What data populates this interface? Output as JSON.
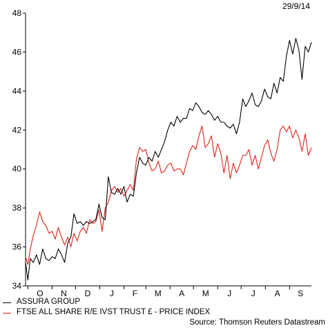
{
  "chart_data": {
    "type": "line",
    "date_label": "29/9/14",
    "source": "Source: Thomson Reuters Datastream",
    "x_ticks": [
      "O",
      "N",
      "D",
      "J",
      "F",
      "M",
      "A",
      "M",
      "J",
      "J",
      "A",
      "S"
    ],
    "x_tick_dates": [
      "2013-10-01",
      "2013-11-01",
      "2013-12-01",
      "2014-01-01",
      "2014-02-01",
      "2014-03-01",
      "2014-04-01",
      "2014-05-01",
      "2014-06-01",
      "2014-07-01",
      "2014-08-01",
      "2014-09-01"
    ],
    "x_range": [
      "2013-09-28",
      "2014-09-29"
    ],
    "ylim": [
      34,
      48
    ],
    "y_ticks": [
      34,
      36,
      38,
      40,
      42,
      44,
      46,
      48
    ],
    "grid": false,
    "legend_position": "bottom-left",
    "series": [
      {
        "name": "ASSURA GROUP",
        "color": "#000000",
        "points": [
          [
            "2013-09-28",
            35.2
          ],
          [
            "2013-10-01",
            34.3
          ],
          [
            "2013-10-04",
            35.4
          ],
          [
            "2013-10-08",
            35.2
          ],
          [
            "2013-10-12",
            35.6
          ],
          [
            "2013-10-16",
            35.1
          ],
          [
            "2013-10-20",
            35.9
          ],
          [
            "2013-10-24",
            35.4
          ],
          [
            "2013-10-28",
            35.3
          ],
          [
            "2013-11-01",
            35.5
          ],
          [
            "2013-11-05",
            35.4
          ],
          [
            "2013-11-09",
            35.9
          ],
          [
            "2013-11-13",
            35.6
          ],
          [
            "2013-11-17",
            35.2
          ],
          [
            "2013-11-21",
            36.2
          ],
          [
            "2013-11-25",
            36.5
          ],
          [
            "2013-11-29",
            37.7
          ],
          [
            "2013-12-03",
            37.2
          ],
          [
            "2013-12-07",
            37.3
          ],
          [
            "2013-12-11",
            37.1
          ],
          [
            "2013-12-15",
            37.3
          ],
          [
            "2013-12-19",
            37.2
          ],
          [
            "2013-12-23",
            37.3
          ],
          [
            "2013-12-27",
            37.4
          ],
          [
            "2013-12-31",
            38.2
          ],
          [
            "2014-01-04",
            37.5
          ],
          [
            "2014-01-08",
            37.4
          ],
          [
            "2014-01-12",
            39.6
          ],
          [
            "2014-01-16",
            38.8
          ],
          [
            "2014-01-20",
            38.7
          ],
          [
            "2014-01-24",
            39.0
          ],
          [
            "2014-01-28",
            38.7
          ],
          [
            "2014-02-01",
            39.1
          ],
          [
            "2014-02-05",
            38.3
          ],
          [
            "2014-02-09",
            38.7
          ],
          [
            "2014-02-13",
            38.6
          ],
          [
            "2014-02-17",
            39.8
          ],
          [
            "2014-02-21",
            40.6
          ],
          [
            "2014-02-25",
            40.3
          ],
          [
            "2014-03-01",
            40.2
          ],
          [
            "2014-03-05",
            40.6
          ],
          [
            "2014-03-09",
            40.4
          ],
          [
            "2014-03-13",
            40.9
          ],
          [
            "2014-03-17",
            40.6
          ],
          [
            "2014-03-21",
            41.0
          ],
          [
            "2014-03-25",
            41.4
          ],
          [
            "2014-03-29",
            42.0
          ],
          [
            "2014-04-02",
            42.4
          ],
          [
            "2014-04-06",
            42.2
          ],
          [
            "2014-04-10",
            42.7
          ],
          [
            "2014-04-14",
            42.4
          ],
          [
            "2014-04-18",
            42.6
          ],
          [
            "2014-04-22",
            42.6
          ],
          [
            "2014-04-26",
            43.1
          ],
          [
            "2014-04-30",
            43.0
          ],
          [
            "2014-05-04",
            43.4
          ],
          [
            "2014-05-08",
            43.2
          ],
          [
            "2014-05-12",
            42.9
          ],
          [
            "2014-05-16",
            42.8
          ],
          [
            "2014-05-20",
            43.0
          ],
          [
            "2014-05-24",
            42.8
          ],
          [
            "2014-05-28",
            42.5
          ],
          [
            "2014-06-01",
            42.7
          ],
          [
            "2014-06-05",
            42.4
          ],
          [
            "2014-06-09",
            42.4
          ],
          [
            "2014-06-13",
            42.2
          ],
          [
            "2014-06-17",
            42.1
          ],
          [
            "2014-06-21",
            42.3
          ],
          [
            "2014-06-25",
            41.8
          ],
          [
            "2014-06-29",
            42.4
          ],
          [
            "2014-07-03",
            43.6
          ],
          [
            "2014-07-07",
            43.2
          ],
          [
            "2014-07-11",
            43.5
          ],
          [
            "2014-07-15",
            43.9
          ],
          [
            "2014-07-19",
            43.3
          ],
          [
            "2014-07-23",
            43.2
          ],
          [
            "2014-07-27",
            43.5
          ],
          [
            "2014-07-31",
            44.1
          ],
          [
            "2014-08-04",
            43.7
          ],
          [
            "2014-08-08",
            43.6
          ],
          [
            "2014-08-12",
            44.4
          ],
          [
            "2014-08-16",
            43.9
          ],
          [
            "2014-08-20",
            44.7
          ],
          [
            "2014-08-24",
            44.5
          ],
          [
            "2014-08-28",
            45.8
          ],
          [
            "2014-09-01",
            46.6
          ],
          [
            "2014-09-05",
            45.9
          ],
          [
            "2014-09-09",
            46.7
          ],
          [
            "2014-09-13",
            46.1
          ],
          [
            "2014-09-17",
            44.6
          ],
          [
            "2014-09-21",
            46.3
          ],
          [
            "2014-09-25",
            46.0
          ],
          [
            "2014-09-29",
            46.5
          ]
        ]
      },
      {
        "name": "FTSE ALL SHARE R/E IVST TRUST £ - PRICE INDEX",
        "color": "#e0201a",
        "points": [
          [
            "2013-09-28",
            35.5
          ],
          [
            "2013-10-01",
            35.1
          ],
          [
            "2013-10-04",
            35.9
          ],
          [
            "2013-10-08",
            36.6
          ],
          [
            "2013-10-12",
            37.1
          ],
          [
            "2013-10-16",
            37.8
          ],
          [
            "2013-10-20",
            37.3
          ],
          [
            "2013-10-24",
            37.1
          ],
          [
            "2013-10-28",
            36.7
          ],
          [
            "2013-11-01",
            36.8
          ],
          [
            "2013-11-05",
            36.4
          ],
          [
            "2013-11-09",
            37.0
          ],
          [
            "2013-11-13",
            36.5
          ],
          [
            "2013-11-17",
            36.1
          ],
          [
            "2013-11-21",
            36.5
          ],
          [
            "2013-11-25",
            36.0
          ],
          [
            "2013-11-29",
            36.7
          ],
          [
            "2013-12-03",
            36.3
          ],
          [
            "2013-12-07",
            36.8
          ],
          [
            "2013-12-11",
            37.0
          ],
          [
            "2013-12-15",
            36.7
          ],
          [
            "2013-12-19",
            37.4
          ],
          [
            "2013-12-23",
            37.2
          ],
          [
            "2013-12-27",
            37.3
          ],
          [
            "2013-12-31",
            37.9
          ],
          [
            "2014-01-04",
            36.8
          ],
          [
            "2014-01-08",
            38.0
          ],
          [
            "2014-01-12",
            38.3
          ],
          [
            "2014-01-16",
            38.9
          ],
          [
            "2014-01-20",
            39.1
          ],
          [
            "2014-01-24",
            38.8
          ],
          [
            "2014-01-28",
            39.0
          ],
          [
            "2014-02-01",
            38.6
          ],
          [
            "2014-02-05",
            38.9
          ],
          [
            "2014-02-09",
            39.2
          ],
          [
            "2014-02-13",
            38.9
          ],
          [
            "2014-02-17",
            40.5
          ],
          [
            "2014-02-21",
            41.1
          ],
          [
            "2014-02-25",
            40.9
          ],
          [
            "2014-03-01",
            41.0
          ],
          [
            "2014-03-05",
            40.3
          ],
          [
            "2014-03-09",
            39.9
          ],
          [
            "2014-03-13",
            40.0
          ],
          [
            "2014-03-17",
            40.4
          ],
          [
            "2014-03-21",
            39.8
          ],
          [
            "2014-03-25",
            39.9
          ],
          [
            "2014-03-29",
            40.2
          ],
          [
            "2014-04-02",
            40.3
          ],
          [
            "2014-04-06",
            39.9
          ],
          [
            "2014-04-10",
            40.0
          ],
          [
            "2014-04-14",
            40.0
          ],
          [
            "2014-04-18",
            39.7
          ],
          [
            "2014-04-22",
            40.3
          ],
          [
            "2014-04-26",
            40.9
          ],
          [
            "2014-04-30",
            41.2
          ],
          [
            "2014-05-04",
            41.0
          ],
          [
            "2014-05-08",
            41.7
          ],
          [
            "2014-05-12",
            42.2
          ],
          [
            "2014-05-16",
            41.1
          ],
          [
            "2014-05-20",
            41.3
          ],
          [
            "2014-05-24",
            41.7
          ],
          [
            "2014-05-28",
            40.6
          ],
          [
            "2014-06-01",
            41.3
          ],
          [
            "2014-06-05",
            40.8
          ],
          [
            "2014-06-09",
            39.8
          ],
          [
            "2014-06-13",
            40.7
          ],
          [
            "2014-06-17",
            39.5
          ],
          [
            "2014-06-21",
            40.3
          ],
          [
            "2014-06-25",
            39.8
          ],
          [
            "2014-06-29",
            40.2
          ],
          [
            "2014-07-03",
            40.7
          ],
          [
            "2014-07-07",
            40.7
          ],
          [
            "2014-07-11",
            41.0
          ],
          [
            "2014-07-15",
            40.2
          ],
          [
            "2014-07-19",
            40.7
          ],
          [
            "2014-07-23",
            40.0
          ],
          [
            "2014-07-27",
            40.6
          ],
          [
            "2014-07-31",
            41.2
          ],
          [
            "2014-08-04",
            41.5
          ],
          [
            "2014-08-08",
            40.8
          ],
          [
            "2014-08-12",
            40.4
          ],
          [
            "2014-08-16",
            41.0
          ],
          [
            "2014-08-20",
            42.0
          ],
          [
            "2014-08-24",
            42.2
          ],
          [
            "2014-08-28",
            41.9
          ],
          [
            "2014-09-01",
            42.2
          ],
          [
            "2014-09-05",
            41.6
          ],
          [
            "2014-09-09",
            42.0
          ],
          [
            "2014-09-13",
            41.6
          ],
          [
            "2014-09-17",
            40.9
          ],
          [
            "2014-09-21",
            41.8
          ],
          [
            "2014-09-25",
            40.7
          ],
          [
            "2014-09-29",
            41.1
          ]
        ]
      }
    ]
  }
}
